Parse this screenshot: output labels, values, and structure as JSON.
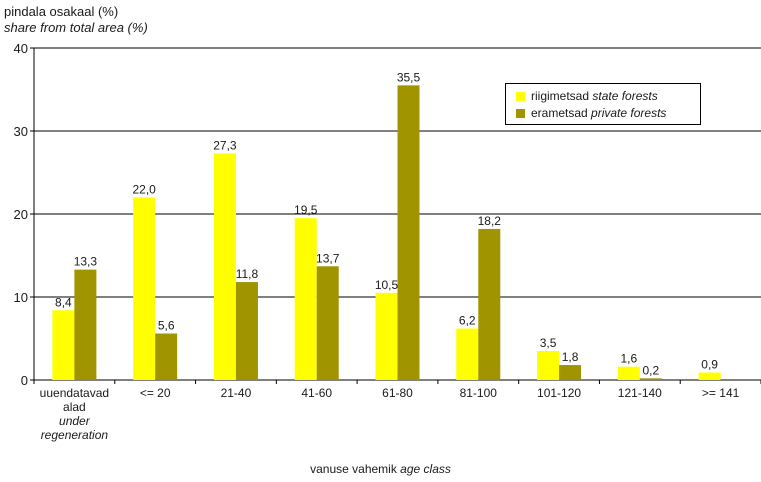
{
  "chart_data": {
    "type": "bar",
    "ylabel_et": "pindala osakaal (%)",
    "ylabel_en": "share from total area (%)",
    "xlabel_et": "vanuse vahemik",
    "xlabel_en": "age class",
    "ylim": [
      0,
      40
    ],
    "yticks": [
      "0",
      "10",
      "20",
      "30",
      "40"
    ],
    "grid": true,
    "legend_position": "top-right",
    "categories": [
      {
        "lines": [
          "uuendatavad",
          "alad"
        ],
        "italic_lines": [
          "under",
          "regeneration"
        ]
      },
      {
        "lines": [
          "<= 20"
        ],
        "italic_lines": []
      },
      {
        "lines": [
          "21-40"
        ],
        "italic_lines": []
      },
      {
        "lines": [
          "41-60"
        ],
        "italic_lines": []
      },
      {
        "lines": [
          "61-80"
        ],
        "italic_lines": []
      },
      {
        "lines": [
          "81-100"
        ],
        "italic_lines": []
      },
      {
        "lines": [
          "101-120"
        ],
        "italic_lines": []
      },
      {
        "lines": [
          "121-140"
        ],
        "italic_lines": []
      },
      {
        "lines": [
          ">= 141"
        ],
        "italic_lines": []
      }
    ],
    "series": [
      {
        "name_et": "riigimetsad",
        "name_en": "state forests",
        "color": "#ffff00",
        "values": [
          8.4,
          22.0,
          27.3,
          19.5,
          10.5,
          6.2,
          3.5,
          1.6,
          0.9
        ],
        "labels": [
          "8,4",
          "22,0",
          "27,3",
          "19,5",
          "10,5",
          "6,2",
          "3,5",
          "1,6",
          "0,9"
        ]
      },
      {
        "name_et": "erametsad",
        "name_en": "private forests",
        "color": "#a09400",
        "values": [
          13.3,
          5.6,
          11.8,
          13.7,
          35.5,
          18.2,
          1.8,
          0.2,
          null
        ],
        "labels": [
          "13,3",
          "5,6",
          "11,8",
          "13,7",
          "35,5",
          "18,2",
          "1,8",
          "0,2",
          ""
        ]
      }
    ]
  }
}
